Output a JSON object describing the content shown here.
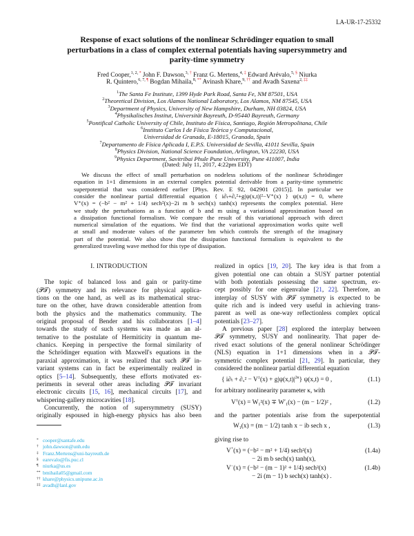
{
  "header": {
    "report_number": "LA-UR-17-25332"
  },
  "title_lines": [
    "Response of exact solutions of the nonlinear Schrödinger equation to small",
    "perturbations in a class of complex external potentials having supersymmetry and",
    "parity-time symmetry"
  ],
  "authors": [
    [
      {
        "name": "Fred Cooper,",
        "aff": "1, 2, ",
        "mark": "*"
      },
      {
        "name": "John F. Dawson,",
        "aff": "3, ",
        "mark": "†"
      },
      {
        "name": "Franz G. Mertens,",
        "aff": "4, ",
        "mark": "‡"
      },
      {
        "name": "Edward Arévalo,",
        "aff": "5, ",
        "mark": "§"
      },
      {
        "name": "Niurka",
        "aff": "",
        "mark": ""
      }
    ],
    [
      {
        "name": "R. Quintero,",
        "aff": "6, 7, ",
        "mark": "¶"
      },
      {
        "name": "Bogdan Mihaila,",
        "aff": "8, ",
        "mark": "**"
      },
      {
        "name": "Avinash Khare,",
        "aff": "9, ",
        "mark": "††"
      },
      {
        "name": "and Avadh Saxena",
        "aff": "2, ",
        "mark": "‡‡"
      }
    ]
  ],
  "affiliations": [
    {
      "n": "1",
      "text": "The Santa Fe Institute, 1399 Hyde Park Road, Santa Fe, NM 87501, USA"
    },
    {
      "n": "2",
      "text": "Theoretical Division, Los Alamos National Laboratory, Los Alamos, NM 87545, USA"
    },
    {
      "n": "3",
      "text": "Department of Physics, University of New Hampshire, Durham, NH 03824, USA"
    },
    {
      "n": "4",
      "text": "Physikalisches Institut, Universität Bayreuth, D-95440 Bayreuth, Germany"
    },
    {
      "n": "5",
      "text": "Pontifical Catholic University of Chile, Instituto de Física, Santiago, Región Metropolitana, Chile"
    },
    {
      "n": "6",
      "text": "Instituto Carlos I de Física Teórica y Computacional,"
    },
    {
      "n": "",
      "text": "Universidad de Granada, E-18015, Granada, Spain"
    },
    {
      "n": "7",
      "text": "Departamento de Física Aplicada I, E.P.S. Universidad de Sevilla, 41011 Sevilla, Spain"
    },
    {
      "n": "8",
      "text": "Physics Division, National Science Foundation, Arlington, VA 22230, USA"
    },
    {
      "n": "9",
      "text": "Physics Department, Savitribai Phule Pune University, Pune 411007, India"
    }
  ],
  "dated": "(Dated: July 11, 2017, 4:22pm EDT)",
  "abstract_lines": [
    [
      "We discuss the effect of small perturbation on nodeless solutions of the nonlinear Schrödinger"
    ],
    [
      "equation in 1+1 dimensions in an external complex potential derivable from a parity-time symmetric"
    ],
    [
      "superpotential that was considered earlier [Phys. Rev. E 92, 042901 (2015)]. In particular we"
    ],
    [
      "consider the nonlinear partial differential equation { i∂ₜ+∂ₓ²+g|ψ(x,t)|²−V⁺(x) } ψ(x,t) = 0, where"
    ],
    [
      "V⁺(x) = (−b² − m² + 1/4) sech²(x)−2i m b sech(x) tanh(x) represents the complex potential. Here"
    ],
    [
      "we study the perturbations as a function of b and m using a variational approximation based on"
    ],
    [
      "a dissipation functional formalism. We compare the result of this variational approach with direct"
    ],
    [
      "numerical simulation of the equations. We find that the variational approximation works quite well"
    ],
    [
      "at small and moderate values of the parameter bm which controls the strength of the imaginary"
    ],
    [
      "part of the potential. We also show that the dissipation functional formalism is equivalent to the"
    ],
    [
      "generalized traveling wave method for this type of dissipation."
    ]
  ],
  "section_heading": "I.   INTRODUCTION",
  "left_lines": [
    [
      "The topic of balanced loss and gain or parity-time"
    ],
    [
      "(𝒫𝒯) symmetry and its relevance for physical applica-"
    ],
    [
      "tions on the one hand, as well as its mathematical struc-"
    ],
    [
      "ture on the other, have drawn considerable attention from"
    ],
    [
      "both the physics and the mathematics community. The"
    ],
    [
      "original proposal of Bender and his collaborators [",
      {
        "cite": "1–4"
      },
      "]"
    ],
    [
      "towards the study of such systems was made as an al-"
    ],
    [
      "ternative to the postulate of Hermiticity in quantum me-"
    ],
    [
      "chanics. Keeping in perspective the formal similarity of"
    ],
    [
      "the Schrödinger equation with Maxwell's equations in the"
    ],
    [
      "paraxial approximation, it was realized that such 𝒫𝒯 in-"
    ],
    [
      "variant systems can in fact be experimentally realized in"
    ],
    [
      "optics [",
      {
        "cite": "5–14"
      },
      "]. Subsequently, these efforts motivated ex-"
    ],
    [
      "periments in several other areas including 𝒫𝒯 invariant"
    ],
    [
      "electronic circuits [",
      {
        "cite": "15"
      },
      ", ",
      {
        "cite": "16"
      },
      "], mechanical circuits [",
      {
        "cite": "17"
      },
      "], and"
    ],
    [
      "whispering-gallery microcavities [",
      {
        "cite": "18"
      },
      "]."
    ],
    [
      "Concurrently, the notion of supersymmetry (SUSY)"
    ],
    [
      "originally espoused in high-energy physics has also been"
    ]
  ],
  "right_lines": [
    [
      "realized in optics [",
      {
        "cite": "19"
      },
      ", ",
      {
        "cite": "20"
      },
      "]. The key idea is that from a"
    ],
    [
      "given potential one can obtain a SUSY partner potential"
    ],
    [
      "with both potentials possessing the same spectrum, ex-"
    ],
    [
      "cept possibly for one eigenvalue [",
      {
        "cite": "21"
      },
      ", ",
      {
        "cite": "22"
      },
      "]. Therefore, an"
    ],
    [
      "interplay of SUSY with 𝒫𝒯 symmetry is expected to be"
    ],
    [
      "quite rich and is indeed very useful in achieving trans-"
    ],
    [
      "parent as well as one-way reflectionless complex optical"
    ],
    [
      "potentials [",
      {
        "cite": "23–27"
      },
      "]."
    ],
    [
      "A previous paper [",
      {
        "cite": "28"
      },
      "] explored the interplay between"
    ],
    [
      "𝒫𝒯 symmetry, SUSY and nonlinearity. That paper de-"
    ],
    [
      "rived exact solutions of the general nonlinear Schrödinger"
    ],
    [
      "(NLS) equation in 1+1 dimensions when in a 𝒫𝒯-"
    ],
    [
      "symmetric complex potential [",
      {
        "cite": "21"
      },
      ", ",
      {
        "cite": "29"
      },
      "]. In particular, they"
    ],
    [
      "considered the nonlinear partial differential equation"
    ]
  ],
  "equations": {
    "eq1_1": {
      "parts": [
        "{ i∂ₜ + ∂ₓ² − V",
        {
          "sup": "±"
        },
        "(x) + g|ψ(x,t)|",
        {
          "sup": "2κ"
        },
        "} ψ(x,t) = 0 ,"
      ],
      "number": "(1.1)"
    },
    "text_after_1_1": "for arbitrary nonlinearity parameter κ, with",
    "eq1_2": {
      "parts": [
        "V",
        {
          "sup": "±"
        },
        "(x) = W",
        {
          "sub": "1"
        },
        "²(x) ∓ W′",
        {
          "sub": "1"
        },
        "(x) − (m − 1/2)² ,"
      ],
      "number": "(1.2)"
    },
    "text_after_1_2": "and the partner potentials arise from the superpotential",
    "eq1_3": {
      "parts": [
        "W",
        {
          "sub": "1"
        },
        "(x) = (m − 1/2)  tanh x − ib sech x ,"
      ],
      "number": "(1.3)"
    },
    "text_after_1_3": "giving rise to",
    "eq1_4a": {
      "parts": [
        "V",
        {
          "sup": "+"
        },
        "(x) = (−b² − m² + 1/4) sech²(x)"
      ],
      "cont": "− 2i m b sech(x) tanh(x),",
      "number": "(1.4a)"
    },
    "eq1_4b": {
      "parts": [
        "V",
        {
          "sup": "−"
        },
        "(x) = (−b² − (m − 1)² + 1/4) sech²(x)"
      ],
      "cont": "− 2i (m − 1) b sech(x) tanh(x) .",
      "number": "(1.4b)"
    }
  },
  "footnotes": [
    {
      "symbol": "*",
      "email": "cooper@santafe.edu"
    },
    {
      "symbol": "†",
      "email": "john.dawson@unh.edu"
    },
    {
      "symbol": "‡",
      "email": "Franz.Mertens@uni-bayreuth.de"
    },
    {
      "symbol": "§",
      "email": "earevalo@fis.puc.cl"
    },
    {
      "symbol": "¶",
      "email": "niurka@us.es"
    },
    {
      "symbol": "**",
      "email": "bmihaila05@gmail.com"
    },
    {
      "symbol": "††",
      "email": "khare@physics.unipune.ac.in"
    },
    {
      "symbol": "‡‡",
      "email": "avadh@lanl.gov"
    }
  ],
  "colors": {
    "citation_link": "#2b36c9",
    "email_link": "#22a9dc",
    "footnote_mark": "#e0202a"
  }
}
